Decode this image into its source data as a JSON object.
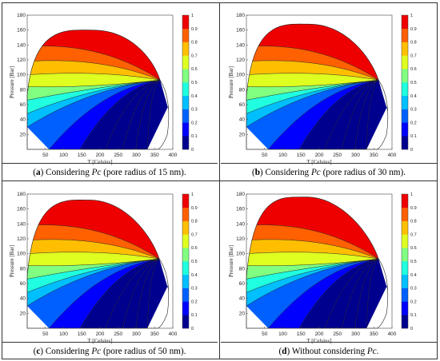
{
  "figure": {
    "panels": [
      {
        "label": "a",
        "caption_pre": "Considering ",
        "caption_italic": "Pc",
        "caption_post": " (pore radius of 15 nm)."
      },
      {
        "label": "b",
        "caption_pre": "Considering ",
        "caption_italic": "Pc",
        "caption_post": " (pore radius of 30 nm)."
      },
      {
        "label": "c",
        "caption_pre": "Considering ",
        "caption_italic": "Pc",
        "caption_post": " (pore radius of 50 nm)."
      },
      {
        "label": "d",
        "caption_pre": "Without considering ",
        "caption_italic": "Pc",
        "caption_post": "."
      }
    ]
  },
  "chart_data": [
    {
      "type": "contour",
      "xlabel": "T [Celsius]",
      "ylabel": "Pressure [Bar]",
      "xlim": [
        0,
        400
      ],
      "ylim": [
        0,
        180
      ],
      "xticks": [
        50,
        100,
        150,
        200,
        250,
        300,
        350,
        400
      ],
      "yticks": [
        20,
        40,
        60,
        80,
        100,
        120,
        140,
        160,
        180
      ],
      "colorbar_ticks": [
        "0",
        "0.1",
        "0.2",
        "0.3",
        "0.4",
        "0.5",
        "0.6",
        "0.7",
        "0.8",
        "0.9",
        "1"
      ],
      "levels": [
        0,
        0.1,
        0.2,
        0.3,
        0.4,
        0.5,
        0.6,
        0.7,
        0.8,
        0.9,
        1
      ],
      "envelope": {
        "bubble_left": [
          [
            0,
            44
          ],
          [
            0,
            72
          ]
        ],
        "dew_base": [
          [
            5,
            0
          ],
          [
            385,
            5
          ]
        ],
        "cricondenbar": [
          180,
          160
        ],
        "critical_point": [
          365,
          93
        ],
        "max_temp": [
          385,
          20
        ]
      }
    },
    {
      "type": "contour",
      "xlabel": "T [Celsius]",
      "ylabel": "Pressure [Bar]",
      "xlim": [
        0,
        400
      ],
      "ylim": [
        0,
        180
      ],
      "xticks": [
        50,
        100,
        150,
        200,
        250,
        300,
        350,
        400
      ],
      "yticks": [
        20,
        40,
        60,
        80,
        100,
        120,
        140,
        160,
        180
      ],
      "colorbar_ticks": [
        "0",
        "0.1",
        "0.2",
        "0.3",
        "0.4",
        "0.5",
        "0.6",
        "0.7",
        "0.8",
        "0.9",
        "1"
      ],
      "levels": [
        0,
        0.1,
        0.2,
        0.3,
        0.4,
        0.5,
        0.6,
        0.7,
        0.8,
        0.9,
        1
      ],
      "envelope": {
        "bubble_left": [
          [
            0,
            40
          ],
          [
            0,
            70
          ]
        ],
        "dew_base": [
          [
            3,
            0
          ],
          [
            385,
            5
          ]
        ],
        "cricondenbar": [
          172,
          168
        ],
        "critical_point": [
          363,
          93
        ],
        "max_temp": [
          385,
          20
        ]
      }
    },
    {
      "type": "contour",
      "xlabel": "T [Celsius]",
      "ylabel": "Pressure [Bar]",
      "xlim": [
        0,
        400
      ],
      "ylim": [
        0,
        180
      ],
      "xticks": [
        50,
        100,
        150,
        200,
        250,
        300,
        350,
        400
      ],
      "yticks": [
        20,
        40,
        60,
        80,
        100,
        120,
        140,
        160,
        180
      ],
      "colorbar_ticks": [
        "0",
        "0.1",
        "0.2",
        "0.3",
        "0.4",
        "0.5",
        "0.6",
        "0.7",
        "0.8",
        "0.9",
        "1"
      ],
      "levels": [
        0,
        0.1,
        0.2,
        0.3,
        0.4,
        0.5,
        0.6,
        0.7,
        0.8,
        0.9,
        1
      ],
      "envelope": {
        "bubble_left": [
          [
            0,
            38
          ],
          [
            0,
            68
          ]
        ],
        "dew_base": [
          [
            2,
            0
          ],
          [
            385,
            5
          ]
        ],
        "cricondenbar": [
          170,
          172
        ],
        "critical_point": [
          363,
          93
        ],
        "max_temp": [
          385,
          20
        ]
      }
    },
    {
      "type": "contour",
      "xlabel": "T [Celsius]",
      "ylabel": "Pressure [Bar]",
      "xlim": [
        0,
        400
      ],
      "ylim": [
        0,
        180
      ],
      "xticks": [
        50,
        100,
        150,
        200,
        250,
        300,
        350,
        400
      ],
      "yticks": [
        20,
        40,
        60,
        80,
        100,
        120,
        140,
        160,
        180
      ],
      "colorbar_ticks": [
        "0",
        "0.1",
        "0.2",
        "0.3",
        "0.4",
        "0.5",
        "0.6",
        "0.7",
        "0.8",
        "0.9",
        "1"
      ],
      "levels": [
        0,
        0.1,
        0.2,
        0.3,
        0.4,
        0.5,
        0.6,
        0.7,
        0.8,
        0.9,
        1
      ],
      "envelope": {
        "bubble_left": [
          [
            0,
            36
          ],
          [
            0,
            66
          ]
        ],
        "dew_base": [
          [
            0,
            0
          ],
          [
            385,
            5
          ]
        ],
        "cricondenbar": [
          165,
          176
        ],
        "critical_point": [
          363,
          93
        ],
        "max_temp": [
          385,
          20
        ]
      }
    }
  ]
}
